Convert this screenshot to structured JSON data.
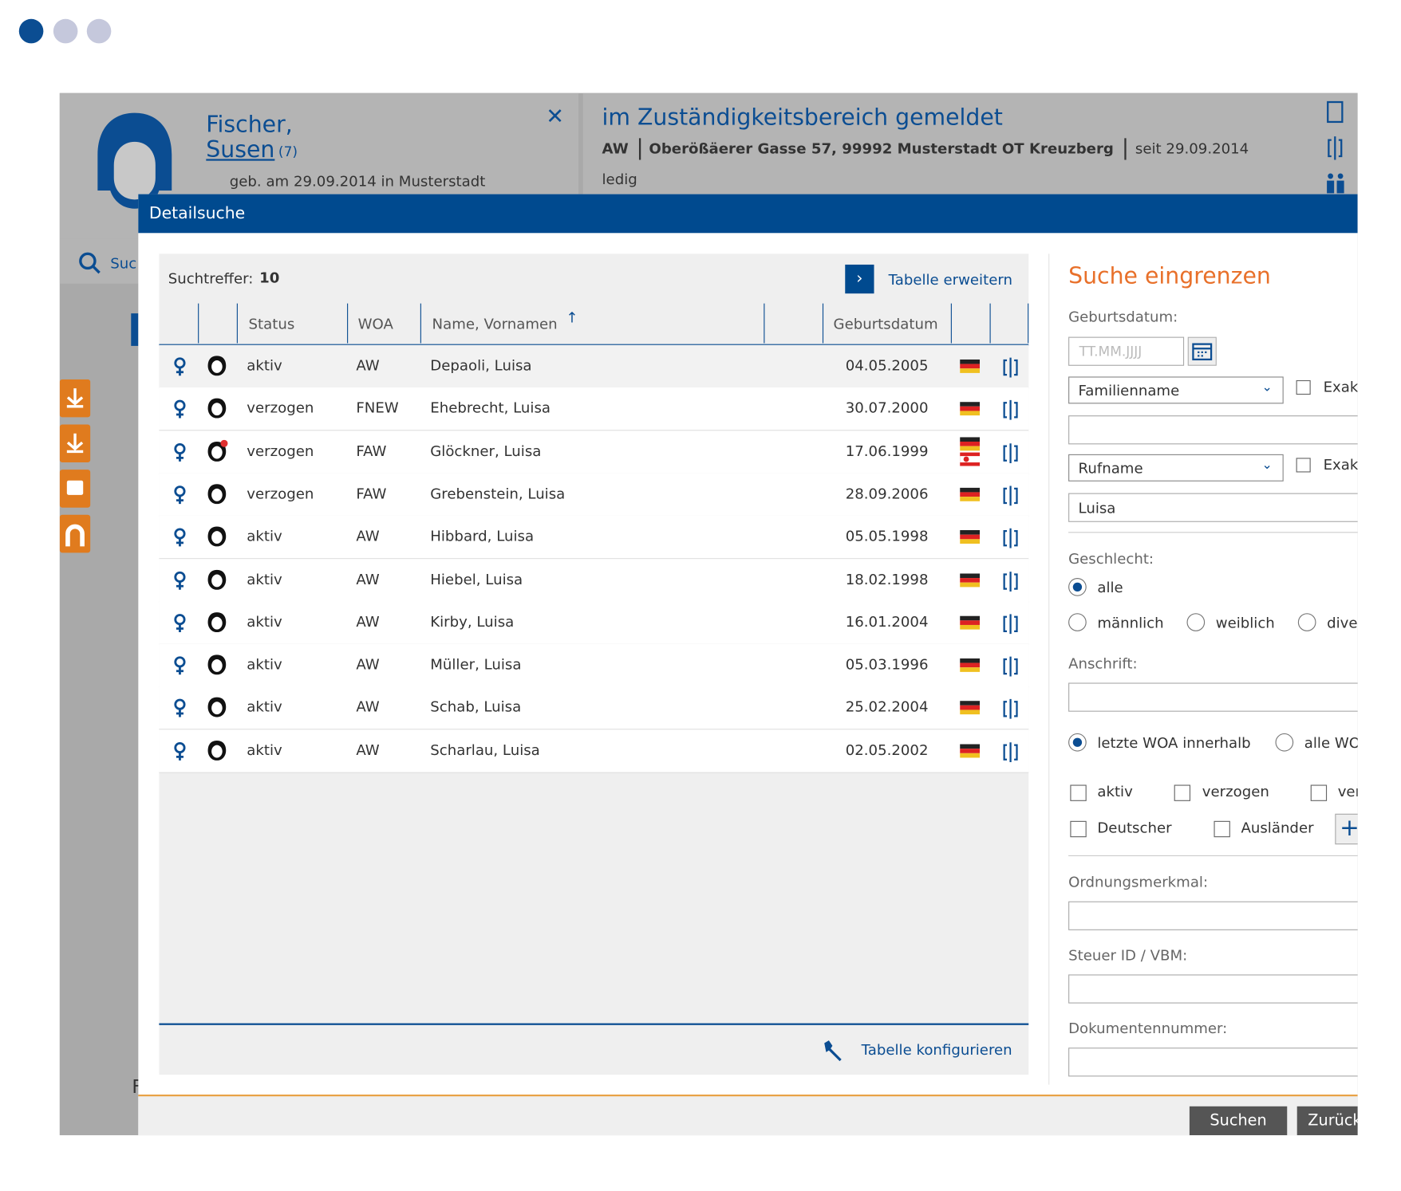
{
  "header": {
    "family_name": "Fischer,",
    "given_name": "Susen",
    "count": "(7)",
    "birth": "geb. am 29.09.2014 in Musterstadt",
    "residence_title": "im Zuständigkeitsbereich gemeldet",
    "residence_type": "AW",
    "address": "Oberößäerer Gasse 57, 99992 Musterstadt OT Kreuzberg",
    "since": "seit 29.09.2014",
    "marital_status": "ledig"
  },
  "background": {
    "search": "Suc",
    "letter": "F"
  },
  "dialog": {
    "title": "Detailsuche",
    "results": {
      "label": "Suchtreffer:",
      "count": "10",
      "expand": "Tabelle erweitern",
      "configure": "Tabelle konfigurieren",
      "columns": [
        "Status",
        "WOA",
        "Name, Vornamen",
        "Geburtsdatum"
      ],
      "rows": [
        [
          "aktiv",
          "AW",
          "Depaoli, Luisa",
          "04.05.2005"
        ],
        [
          "verzogen",
          "FNEW",
          "Ehebrecht, Luisa",
          "30.07.2000"
        ],
        [
          "verzogen",
          "FAW",
          "Glöckner, Luisa",
          "17.06.1999"
        ],
        [
          "verzogen",
          "FAW",
          "Grebenstein, Luisa",
          "28.09.2006"
        ],
        [
          "aktiv",
          "AW",
          "Hibbard, Luisa",
          "05.05.1998"
        ],
        [
          "aktiv",
          "AW",
          "Hiebel, Luisa",
          "18.02.1998"
        ],
        [
          "aktiv",
          "AW",
          "Kirby, Luisa",
          "16.01.2004"
        ],
        [
          "aktiv",
          "AW",
          "Müller, Luisa",
          "05.03.1996"
        ],
        [
          "aktiv",
          "AW",
          "Schab, Luisa",
          "25.02.2004"
        ],
        [
          "aktiv",
          "AW",
          "Scharlau, Luisa",
          "02.05.2002"
        ]
      ]
    },
    "filter": {
      "title": "Suche eingrenzen",
      "birthdate_label": "Geburtsdatum:",
      "birthdate_placeholder": "TT.MM.JJJJ",
      "name_field": "Familienname",
      "exact": "Exakt",
      "given_field": "Rufname",
      "given_value": "Luisa",
      "gender_label": "Geschlecht:",
      "genders": [
        "alle",
        "männlich",
        "weiblich",
        "divers"
      ],
      "address_label": "Anschrift:",
      "woa_options": [
        "letzte WOA innerhalb",
        "alle WOA"
      ],
      "status_options": [
        "aktiv",
        "verzogen",
        "verstorben"
      ],
      "nationality_options": [
        "Deutscher",
        "Ausländer"
      ],
      "order_label": "Ordnungsmerkmal:",
      "tax_label": "Steuer ID / VBM:",
      "document_label": "Dokumentennummer:"
    },
    "buttons": [
      "Suchen",
      "Zurück"
    ]
  }
}
